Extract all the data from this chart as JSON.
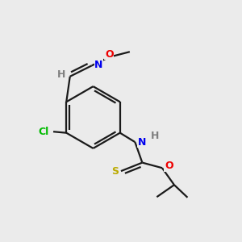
{
  "bg_color": "#ebebeb",
  "bond_color": "#1a1a1a",
  "bond_width": 1.6,
  "dbo": 0.09,
  "atom_colors": {
    "H": "#808080",
    "N": "#0000ee",
    "O": "#ee0000",
    "S": "#bbaa00",
    "Cl": "#00bb00"
  },
  "figsize": [
    3.0,
    3.0
  ],
  "dpi": 100,
  "xlim": [
    0,
    10
  ],
  "ylim": [
    0,
    10
  ]
}
